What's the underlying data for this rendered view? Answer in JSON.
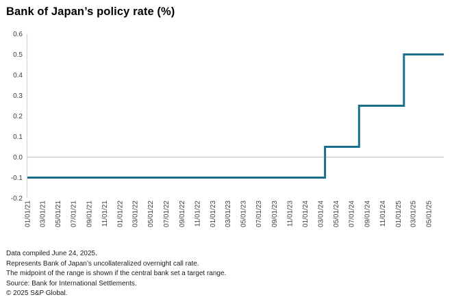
{
  "chart_data": {
    "type": "line",
    "line_style": "step-after",
    "title": "Bank of Japan’s policy rate (%)",
    "xlabel": "",
    "ylabel": "",
    "ylim": [
      -0.2,
      0.6
    ],
    "yticks": [
      0.6,
      0.5,
      0.4,
      0.3,
      0.2,
      0.1,
      0.0,
      -0.1,
      -0.2
    ],
    "x_tick_labels": [
      "01/01/21",
      "03/01/21",
      "05/01/21",
      "07/01/21",
      "09/01/21",
      "11/01/21",
      "01/01/22",
      "03/01/22",
      "05/01/22",
      "07/01/22",
      "09/01/22",
      "11/01/22",
      "01/01/23",
      "03/01/23",
      "05/01/23",
      "07/01/23",
      "09/01/23",
      "11/01/23",
      "01/01/24",
      "03/01/24",
      "05/01/24",
      "07/01/24",
      "09/01/24",
      "11/01/24",
      "01/01/25",
      "03/01/25",
      "05/01/25"
    ],
    "x_range": [
      "2021-01-01",
      "2025-06-30"
    ],
    "grid": false,
    "zero_line": true,
    "legend": "none",
    "series": [
      {
        "name": "Bank of Japan policy rate",
        "points": [
          {
            "date": "2021-01-01",
            "value": -0.1
          },
          {
            "date": "2024-03-19",
            "value": 0.05
          },
          {
            "date": "2024-07-31",
            "value": 0.25
          },
          {
            "date": "2025-01-24",
            "value": 0.5
          },
          {
            "date": "2025-06-30",
            "value": 0.5
          }
        ]
      }
    ]
  },
  "colors": {
    "line": "#1a6e8e",
    "zero_line": "#c6c6c6",
    "axis_line": "#d4d4d4",
    "tick_text": "#3d3d3d",
    "footer_text": "#1a1a1a",
    "title_text": "#000000"
  },
  "footer": {
    "lines": [
      "Data compiled June 24, 2025.",
      "Represents Bank of Japan’s uncollateralized overnight call rate.",
      "The midpoint of the range is shown if the central bank set a target range.",
      "Source: Bank for International Settlements.",
      "© 2025 S&P Global."
    ]
  }
}
